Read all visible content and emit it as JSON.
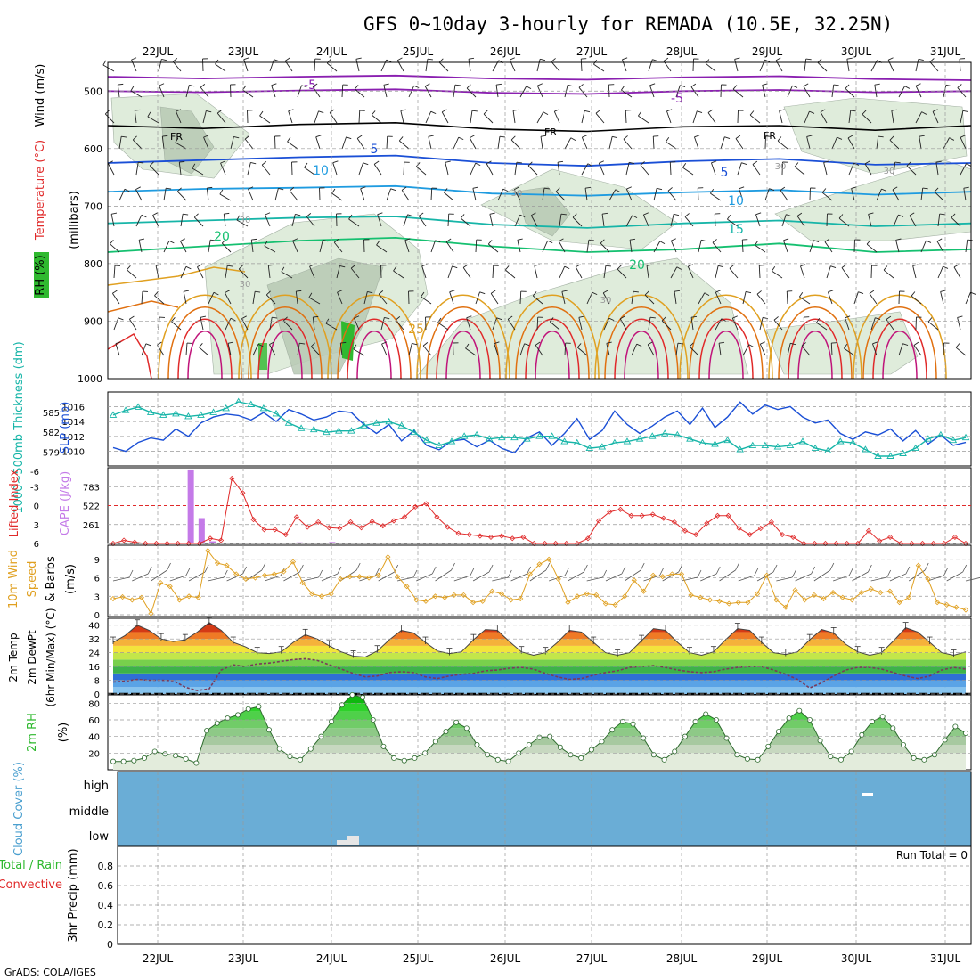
{
  "title": "GFS 0~10day 3-hourly for REMADA (10.5E, 32.25N)",
  "footer": "GrADS: COLA/IGES",
  "dates": [
    "22JUL",
    "23JUL",
    "24JUL",
    "25JUL",
    "26JUL",
    "27JUL",
    "28JUL",
    "29JUL",
    "30JUL",
    "31JUL"
  ],
  "colors": {
    "purple": "#8a1fb0",
    "blue": "#1a4fd6",
    "cyan": "#1e9be0",
    "teal": "#17b5a8",
    "green": "#15c070",
    "orange": "#e0a020",
    "red": "#e02a2a",
    "rhgreen": "#2fb92f",
    "cloud": "#6aadd6",
    "orangeDark": "#e07010"
  },
  "chart_data": [
    {
      "type": "contour",
      "panel": "upper-air",
      "ylabel_parts": {
        "rh": "RH (%)",
        "temp": "Temperature (°C)",
        "wind": "Wind (m/s)",
        "unit": "(millibars)"
      },
      "yticks": [
        500,
        600,
        700,
        800,
        900,
        1000
      ],
      "ylim": [
        1000,
        450
      ],
      "isotherms": [
        {
          "label": "-5",
          "levels": [
            475,
            478,
            475,
            473,
            478,
            480,
            476,
            474,
            479,
            481
          ]
        },
        {
          "label": "-5",
          "levels": [
            500,
            502,
            499,
            497,
            503,
            505,
            500,
            498,
            502,
            500
          ]
        },
        {
          "label": "FR",
          "levels": [
            560,
            565,
            558,
            555,
            566,
            570,
            562,
            560,
            568,
            560
          ]
        },
        {
          "label": "5",
          "levels": [
            625,
            620,
            615,
            612,
            625,
            630,
            622,
            618,
            628,
            625
          ]
        },
        {
          "label": "10",
          "levels": [
            675,
            670,
            668,
            665,
            678,
            682,
            676,
            672,
            680,
            675
          ]
        },
        {
          "label": "15",
          "levels": [
            730,
            725,
            720,
            718,
            732,
            738,
            730,
            725,
            735,
            730
          ]
        },
        {
          "label": "20",
          "levels": [
            780,
            770,
            760,
            755,
            770,
            780,
            775,
            765,
            780,
            775
          ]
        }
      ],
      "contour_labels": [
        "-5",
        "-5",
        "FR",
        "FR",
        "FR",
        "5",
        "5",
        "10",
        "10",
        "15",
        "20",
        "20",
        "25",
        "30",
        "30",
        "30",
        "30",
        "30",
        "30"
      ]
    },
    {
      "type": "line",
      "panel": "thickness-slp",
      "ylabel_left": "1000~500mb Thickness (dm)",
      "ylabel_right": "SLP (mb)",
      "yticks_left": [
        579,
        582,
        585
      ],
      "yticks_right": [
        1010,
        1012,
        1014,
        1016
      ],
      "series": [
        {
          "name": "SLP",
          "axis": "right",
          "values": [
            1010.5,
            1010.0,
            1011.2,
            1011.8,
            1011.5,
            1013.0,
            1012.0,
            1013.8,
            1014.6,
            1015.0,
            1014.8,
            1014.2,
            1015.2,
            1014.0,
            1015.6,
            1015.0,
            1014.2,
            1014.6,
            1015.4,
            1015.2,
            1013.6,
            1012.4,
            1013.6,
            1011.4,
            1012.8,
            1010.8,
            1010.2,
            1011.4,
            1011.6,
            1010.6,
            1011.5,
            1010.4,
            1009.8,
            1011.8,
            1012.6,
            1010.8,
            1012.4,
            1014.4,
            1011.6,
            1012.8,
            1015.4,
            1013.6,
            1012.4,
            1013.4,
            1014.6,
            1015.4,
            1013.6,
            1015.8,
            1013.2,
            1014.6,
            1016.6,
            1015.0,
            1016.2,
            1015.6,
            1016.0,
            1014.6,
            1013.8,
            1014.2,
            1012.4,
            1011.6,
            1012.6,
            1012.2,
            1013.0,
            1011.4,
            1012.8,
            1011.0,
            1012.2,
            1010.8,
            1011.2
          ]
        },
        {
          "name": "Thickness",
          "axis": "left",
          "values": [
            584.6,
            585.3,
            585.8,
            585.0,
            584.6,
            584.8,
            584.4,
            584.6,
            585.0,
            585.6,
            586.6,
            586.2,
            585.6,
            584.8,
            583.4,
            582.6,
            582.4,
            582.0,
            582.2,
            582.2,
            583.0,
            583.4,
            583.6,
            583.0,
            582.0,
            580.8,
            580.0,
            580.6,
            581.4,
            581.6,
            581.0,
            581.2,
            581.2,
            581.0,
            581.4,
            581.4,
            580.6,
            580.4,
            579.6,
            579.8,
            580.4,
            580.6,
            581.0,
            581.4,
            581.8,
            581.6,
            581.0,
            580.4,
            580.2,
            580.8,
            579.4,
            580.0,
            580.0,
            579.8,
            580.0,
            580.6,
            579.6,
            579.2,
            580.6,
            580.4,
            579.4,
            578.4,
            578.4,
            578.8,
            579.6,
            581.0,
            581.6,
            580.8,
            581.2
          ]
        }
      ]
    },
    {
      "type": "bar+line",
      "panel": "cape-li",
      "ylabel_li": "Lifted Index",
      "ylabel_cape": "CAPE (J/kg)",
      "yticks_li": [
        -3,
        0,
        3,
        6
      ],
      "yticks_li_labels": [
        "-3",
        "0",
        "3",
        "6"
      ],
      "yticks_cape": [
        261,
        522,
        783
      ],
      "li_top_label": "-6",
      "cape_values": [
        0,
        0,
        0,
        0,
        0,
        0,
        0,
        0,
        0,
        0,
        0,
        1020,
        350,
        30,
        0,
        0,
        0,
        0,
        0,
        0,
        0,
        15,
        0,
        0,
        20,
        0,
        0,
        0,
        0,
        0,
        0,
        0,
        0,
        0,
        0,
        0,
        0,
        0,
        0,
        0,
        0,
        0,
        0,
        0,
        0,
        0,
        0,
        0,
        0,
        0,
        0,
        0,
        0,
        0,
        0,
        0,
        0,
        0,
        0,
        0,
        0,
        0,
        0,
        0,
        0,
        0,
        0,
        0,
        0,
        0,
        0
      ],
      "li_values": [
        6,
        5.5,
        5.8,
        6,
        6,
        6,
        6,
        6,
        6,
        5.2,
        5.5,
        -4.3,
        -2,
        2.2,
        3.8,
        3.8,
        4.6,
        1.8,
        3.4,
        2.6,
        3.5,
        3.6,
        2.6,
        3.5,
        2.5,
        3.2,
        2.4,
        1.8,
        0.2,
        -0.3,
        1.8,
        3.4,
        4.4,
        4.6,
        4.8,
        5,
        4.8,
        5.2,
        5,
        6,
        6,
        6,
        6,
        6,
        5.2,
        2.4,
        1.0,
        0.6,
        1.6,
        1.6,
        1.4,
        2.0,
        2.6,
        4.0,
        4.6,
        2.8,
        1.6,
        1.6,
        3.6,
        4.6,
        3.6,
        2.6,
        4.6,
        5.0,
        6,
        6,
        6,
        6,
        6,
        6,
        4.0,
        5.6,
        5.0,
        6,
        6,
        6,
        6,
        6,
        5.0,
        6
      ]
    },
    {
      "type": "line",
      "panel": "wind10m",
      "ylabel": "10m Wind Speed & Barbs (m/s)",
      "ylabel_parts": {
        "a": "10m Wind",
        "b": "Speed",
        "c": "& Barbs",
        "unit": "(m/s)"
      },
      "yticks": [
        0,
        3,
        6,
        9
      ],
      "ylim": [
        0,
        11
      ],
      "values": [
        2.6,
        2.9,
        2.4,
        2.8,
        0.2,
        5.2,
        4.6,
        2.4,
        3.0,
        2.8,
        10.4,
        8.4,
        8.0,
        6.6,
        5.8,
        6.0,
        6.4,
        6.6,
        7.0,
        8.6,
        5.2,
        3.4,
        3.0,
        3.4,
        5.8,
        6.2,
        6.2,
        6.0,
        6.4,
        9.4,
        6.2,
        4.6,
        2.4,
        2.2,
        3.0,
        2.8,
        3.2,
        3.2,
        2.0,
        2.2,
        3.8,
        3.4,
        2.4,
        2.6,
        6.6,
        8.2,
        9.0,
        5.8,
        2.0,
        3.0,
        3.4,
        3.2,
        1.8,
        1.6,
        3.0,
        5.6,
        3.8,
        6.4,
        6.2,
        6.6,
        6.6,
        3.2,
        2.8,
        2.4,
        2.2,
        1.8,
        2.0,
        2.0,
        3.4,
        6.4,
        2.4,
        1.2,
        4.0,
        2.4,
        3.2,
        2.6,
        3.6,
        2.8,
        2.4,
        3.6,
        4.2,
        3.6,
        3.8,
        2.0,
        2.8,
        8.0,
        5.8,
        2.0,
        1.6,
        1.2,
        0.8
      ]
    },
    {
      "type": "area",
      "panel": "temp-dewpt",
      "ylabel_parts": {
        "a": "2m Temp",
        "b": "2m DewPt",
        "c": "(6hr Min/Max) (°C)"
      },
      "yticks": [
        0,
        8,
        16,
        24,
        32,
        40
      ],
      "ylim": [
        0,
        44
      ],
      "temp": [
        30.0,
        34.0,
        40.0,
        37.0,
        32.0,
        30.5,
        31.5,
        36.0,
        41.5,
        37.0,
        30.0,
        27.5,
        24.0,
        23.5,
        24.5,
        30.0,
        34.5,
        32.0,
        28.0,
        24.5,
        22.0,
        21.5,
        25.0,
        31.5,
        37.0,
        35.5,
        30.0,
        25.0,
        23.5,
        24.5,
        31.5,
        37.5,
        37.0,
        30.5,
        24.5,
        22.5,
        24.0,
        30.0,
        37.0,
        36.0,
        30.0,
        24.0,
        22.5,
        24.0,
        31.0,
        38.0,
        37.0,
        30.0,
        24.0,
        22.5,
        24.5,
        31.5,
        38.0,
        37.0,
        30.0,
        24.0,
        23.0,
        24.5,
        31.5,
        37.5,
        35.5,
        29.0,
        24.5,
        22.5,
        24.0,
        31.0,
        38.5,
        36.0,
        30.0,
        24.0,
        22.5,
        24.5
      ],
      "dewpt": [
        7.0,
        7.5,
        8.5,
        8.0,
        8.0,
        7.8,
        4.0,
        2.0,
        3.0,
        14.0,
        17.0,
        16.0,
        17.5,
        18.0,
        19.0,
        20.0,
        20.5,
        19.5,
        17.0,
        14.5,
        12.0,
        10.0,
        10.5,
        12.5,
        13.0,
        12.5,
        10.0,
        9.0,
        10.5,
        11.5,
        12.0,
        13.5,
        14.0,
        15.0,
        15.5,
        14.5,
        12.0,
        10.0,
        8.5,
        9.0,
        11.0,
        12.5,
        13.5,
        15.5,
        16.0,
        16.5,
        15.5,
        14.0,
        13.0,
        12.5,
        13.0,
        14.5,
        15.5,
        16.0,
        16.0,
        14.0,
        11.5,
        8.5,
        3.5,
        6.5,
        10.5,
        14.0,
        15.5,
        15.5,
        14.5,
        12.5,
        10.5,
        9.0,
        10.5,
        14.0,
        15.5,
        14.5
      ]
    },
    {
      "type": "area",
      "panel": "rh2m",
      "ylabel_parts": {
        "a": "2m RH",
        "unit": "(%)"
      },
      "yticks": [
        20,
        40,
        60,
        80
      ],
      "ylim": [
        0,
        90
      ],
      "values": [
        10,
        10,
        11,
        14,
        22,
        19,
        17,
        13,
        8,
        47,
        56,
        62,
        66,
        73,
        76,
        48,
        25,
        16,
        12,
        25,
        40,
        58,
        78,
        90,
        87,
        60,
        28,
        14,
        11,
        14,
        20,
        34,
        46,
        57,
        50,
        30,
        18,
        12,
        10,
        20,
        30,
        39,
        40,
        27,
        18,
        14,
        24,
        34,
        48,
        58,
        55,
        38,
        18,
        12,
        22,
        40,
        58,
        67,
        60,
        38,
        18,
        13,
        12,
        28,
        46,
        62,
        71,
        60,
        35,
        16,
        12,
        22,
        42,
        58,
        64,
        50,
        30,
        14,
        12,
        18,
        36,
        52,
        44
      ]
    },
    {
      "type": "heatmap",
      "panel": "cloud",
      "ylabel": "Cloud Cover (%)",
      "yticks_labels": [
        "high",
        "middle",
        "low"
      ],
      "layers": [
        "high",
        "middle",
        "low"
      ]
    },
    {
      "type": "bar",
      "panel": "precip",
      "ylabel_parts": {
        "a": "Total / Rain",
        "b": "Convective",
        "c": "3hr Precip (mm)"
      },
      "yticks": [
        0,
        0.2,
        0.4,
        0.6,
        0.8
      ],
      "yticks_labels": [
        "0",
        "0.2",
        "0.4",
        "0.6",
        "0.8"
      ],
      "ylim": [
        0,
        1.0
      ],
      "run_total": "Run Total = 0"
    }
  ]
}
